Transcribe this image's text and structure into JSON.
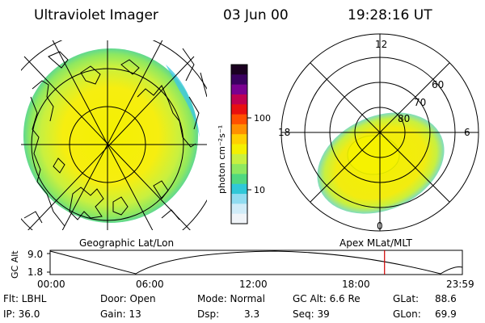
{
  "header": {
    "instrument": "Ultraviolet Imager",
    "date": "03 Jun 00",
    "time": "19:28:16 UT"
  },
  "colorbar": {
    "label": "photon cm⁻²s⁻¹",
    "ticks": [
      "100",
      "10"
    ],
    "colors_top_to_bottom": [
      "#1a0020",
      "#3a0060",
      "#7a0090",
      "#c00050",
      "#e81010",
      "#ff5000",
      "#ff9000",
      "#ffd000",
      "#f4f000",
      "#c8f040",
      "#8ee860",
      "#50d880",
      "#30c8d8",
      "#90dcf0",
      "#d0ecf8",
      "#f0f4f8"
    ]
  },
  "panels": {
    "left_label": "Geographic Lat/Lon",
    "right_label": "Apex MLat/MLT",
    "mlt_labels": {
      "top": "12",
      "left": "18",
      "right": "6",
      "bottom": "0"
    },
    "mlat_labels": [
      "60",
      "70",
      "80"
    ]
  },
  "timeline": {
    "axis_label": "GC Alt",
    "y_ticks": [
      "9.0",
      "1.8"
    ],
    "x_ticks": [
      "00:00",
      "06:00",
      "12:00",
      "18:00",
      "23:59"
    ],
    "current_time_fraction": 0.8112,
    "marker_color": "#d00000"
  },
  "status": {
    "filter": "Flt: LBHL",
    "door": "Door: Open",
    "mode": "Mode: Normal",
    "gc_alt": "GC Alt: 6.6 Re",
    "glat_label": "GLat:",
    "glat_value": "88.6",
    "ip": "IP: 36.0",
    "gain": "Gain: 13",
    "dsp_label": "Dsp:",
    "dsp_value": "3.3",
    "seq": "Seq: 39",
    "glon_label": "GLon:",
    "glon_value": "69.9"
  }
}
